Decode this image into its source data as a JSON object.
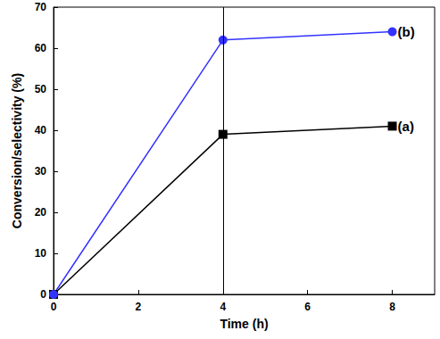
{
  "chart_data": {
    "type": "line",
    "x_label": "Time (h)",
    "y_label": "Conversion/selectivity (%)",
    "xlim": [
      0,
      9
    ],
    "xticks": [
      0,
      2,
      4,
      6,
      8
    ],
    "ylim": [
      0,
      70
    ],
    "yticks": [
      0,
      10,
      20,
      30,
      40,
      50,
      60,
      70
    ],
    "vline": 4,
    "grid": false,
    "series": [
      {
        "name": "(a)",
        "color": "#000000",
        "marker": "square",
        "x": [
          0,
          4,
          8
        ],
        "values": [
          0,
          39,
          41
        ]
      },
      {
        "name": "(b)",
        "color": "#3333ff",
        "marker": "circle",
        "x": [
          0,
          4,
          8
        ],
        "values": [
          0,
          62,
          64
        ]
      }
    ]
  }
}
